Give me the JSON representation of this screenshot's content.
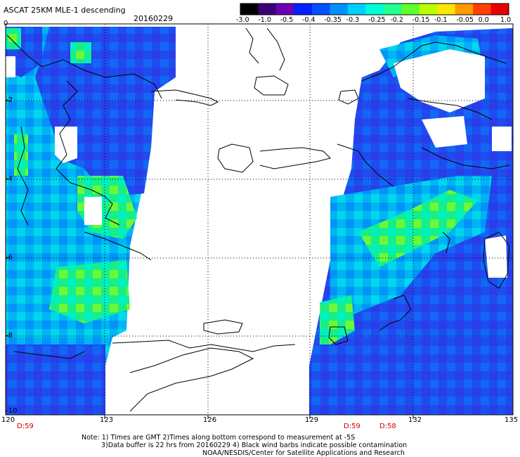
{
  "header": {
    "title": "ASCAT 25KM MLE-1 descending",
    "date": "20160229"
  },
  "colorbar": {
    "labels": [
      "-3.0",
      "-1.0",
      "-0.5",
      "-0.4",
      "-0.35",
      "-0.3",
      "-0.25",
      "-0.2",
      "-0.15",
      "-0.1",
      "-0.05",
      "0.0",
      "1.0"
    ],
    "colors": [
      "#000000",
      "#3c0078",
      "#6a00b8",
      "#0020ff",
      "#0050ff",
      "#0090ff",
      "#00d0ff",
      "#00ffd8",
      "#20ff90",
      "#60ff30",
      "#b8ff00",
      "#ffe600",
      "#ff9a00",
      "#ff4000",
      "#e80000"
    ]
  },
  "axes": {
    "lon_labels": [
      "120",
      "123",
      "126",
      "129",
      "132",
      "135"
    ],
    "lat_labels": [
      "-2",
      "-4",
      "-6",
      "-8",
      "-10"
    ],
    "corner_label": "0"
  },
  "times": [
    "D:59",
    "D:59",
    "D:58"
  ],
  "notes": {
    "line1": "Note: 1) Times are GMT 2)Times along bottom correspond to measurement at -5S",
    "line2": "3)Data buffer is 22 hrs from 20160229 4) Black wind barbs indicate possible contamination",
    "line3": "NOAA/NESDIS/Center for Satellite Applications and Research"
  }
}
